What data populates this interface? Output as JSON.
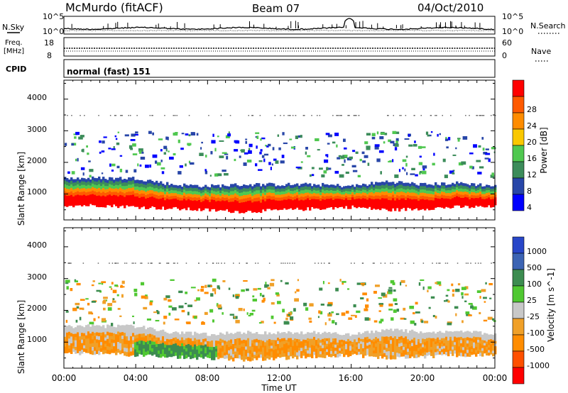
{
  "header": {
    "station": "McMurdo (fitACF)",
    "beam": "Beam 07",
    "date": "04/Oct/2010"
  },
  "noise_panel": {
    "left_label": "N.Sky",
    "right_label": "N.Search",
    "left_ticks": [
      "10^5",
      "10^0"
    ],
    "right_ticks": [
      "10^5",
      "10^0"
    ]
  },
  "freq_panel": {
    "left_label_1": "Freq.",
    "left_label_2": "[MHz]",
    "right_label": "Nave",
    "left_ticks": [
      "18",
      "8"
    ],
    "right_ticks": [
      "60",
      "0"
    ]
  },
  "cpid_panel": {
    "label": "CPID",
    "mode": "normal (fast) 151"
  },
  "power_panel": {
    "ylabel": "Slant Range [km]",
    "yticks": [
      "1000",
      "2000",
      "3000",
      "4000"
    ],
    "colorbar_label": "Power [dB]",
    "colorbar_ticks": [
      "4",
      "8",
      "12",
      "16",
      "20",
      "24",
      "28"
    ],
    "colors": [
      "#0000ff",
      "#2846a8",
      "#3c8c5a",
      "#50c850",
      "#fac800",
      "#ff8c00",
      "#ff5a00",
      "#ff0000"
    ]
  },
  "velocity_panel": {
    "ylabel": "Slant Range [km]",
    "yticks": [
      "1000",
      "2000",
      "3000",
      "4000"
    ],
    "colorbar_label": "Velocity [m s^-1]",
    "colorbar_ticks": [
      "1000",
      "500",
      "100",
      "25",
      "-25",
      "-100",
      "-500",
      "-1000"
    ],
    "colors": [
      "#2846c8",
      "#3c64b4",
      "#3c8c50",
      "#50c832",
      "#c8c8c8",
      "#f0a028",
      "#ff8c00",
      "#ff5000",
      "#ff0000"
    ]
  },
  "xaxis": {
    "label": "Time UT",
    "ticks": [
      "00:00",
      "04:00",
      "08:00",
      "12:00",
      "16:00",
      "20:00",
      "00:00"
    ]
  },
  "chart_data": {
    "type": "heatmap",
    "x_range_hours": [
      0,
      24
    ],
    "y_range_km": [
      180,
      4600
    ],
    "backscatter_band_km": {
      "time_ut_hours": [
        0,
        2,
        4,
        6,
        8,
        10,
        12,
        14,
        16,
        18,
        20,
        22,
        24
      ],
      "lower_edge": [
        650,
        650,
        600,
        550,
        500,
        450,
        500,
        550,
        600,
        500,
        550,
        600,
        600
      ],
      "upper_edge": [
        1500,
        1500,
        1500,
        1300,
        1250,
        1300,
        1300,
        1300,
        1250,
        1400,
        1300,
        1350,
        1250
      ]
    }
  }
}
